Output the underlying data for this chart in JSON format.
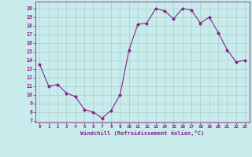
{
  "x": [
    0,
    1,
    2,
    3,
    4,
    5,
    6,
    7,
    8,
    9,
    10,
    11,
    12,
    13,
    14,
    15,
    16,
    17,
    18,
    19,
    20,
    21,
    22,
    23
  ],
  "y": [
    13.5,
    11.0,
    11.2,
    10.2,
    9.8,
    8.3,
    8.0,
    7.3,
    8.2,
    10.0,
    15.2,
    18.2,
    18.3,
    20.0,
    19.7,
    18.8,
    20.0,
    19.8,
    18.3,
    19.0,
    17.2,
    15.2,
    13.8,
    14.0
  ],
  "line_color": "#882288",
  "marker": "D",
  "marker_size": 2,
  "bg_color": "#c8ecec",
  "grid_color": "#aacccc",
  "xlabel": "Windchill (Refroidissement éolien,°C)",
  "yticks": [
    7,
    8,
    9,
    10,
    11,
    12,
    13,
    14,
    15,
    16,
    17,
    18,
    19,
    20
  ],
  "xticks": [
    0,
    1,
    2,
    3,
    4,
    5,
    6,
    7,
    8,
    9,
    10,
    11,
    12,
    13,
    14,
    15,
    16,
    17,
    18,
    19,
    20,
    21,
    22,
    23
  ],
  "ylim": [
    6.8,
    20.8
  ],
  "xlim": [
    -0.5,
    23.5
  ]
}
